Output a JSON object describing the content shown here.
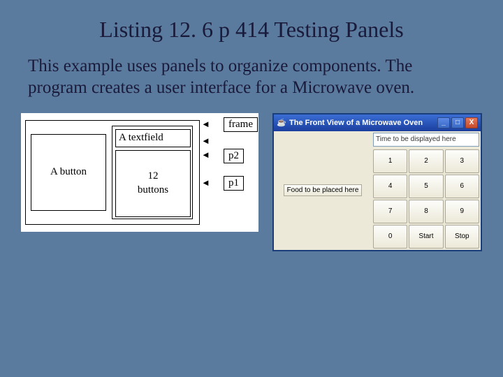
{
  "slide": {
    "title": "Listing 12. 6 p 414 Testing Panels",
    "body": "This example uses panels to organize components. The program creates a user interface for a Microwave oven."
  },
  "diagram": {
    "a_button": "A button",
    "a_textfield": "A textfield",
    "buttons_12": "12\nbuttons",
    "label_frame": "frame",
    "label_p2": "p2",
    "label_p1": "p1"
  },
  "window": {
    "title": "The Front View of a Microwave Oven",
    "min_label": "_",
    "max_label": "□",
    "close_label": "X",
    "time_text": "Time to be displayed here",
    "food_label": "Food to be placed here",
    "keys": [
      "1",
      "2",
      "3",
      "4",
      "5",
      "6",
      "7",
      "8",
      "9",
      "0",
      "Start",
      "Stop"
    ]
  },
  "colors": {
    "slide_bg": "#5a7a9e",
    "title_color": "#1a1a3a",
    "xp_titlebar_start": "#3b6ed5",
    "xp_titlebar_end": "#1a3e9e",
    "xp_body": "#ece9d8",
    "xp_close": "#c54a2a"
  }
}
